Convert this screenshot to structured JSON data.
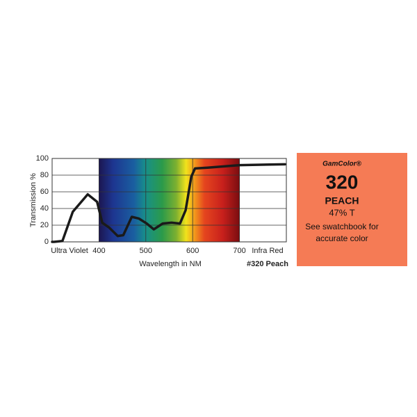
{
  "chart_data": {
    "type": "line",
    "ylabel": "Transmission %",
    "xlabel": "Wavelength in NM",
    "region_labels": [
      "Ultra Violet",
      "Infra Red"
    ],
    "caption": "#320 Peach",
    "x": [
      300,
      304,
      322,
      344,
      376,
      396,
      407,
      422,
      440,
      452,
      470,
      485,
      502,
      517,
      536,
      555,
      573,
      585,
      597,
      605,
      632,
      700,
      797
    ],
    "values": [
      0,
      0,
      1,
      36,
      57,
      48,
      23,
      17,
      7,
      8,
      30,
      28,
      22,
      15,
      22,
      23,
      22,
      38,
      78,
      88,
      89,
      92,
      93
    ],
    "color": "#1a1a1a",
    "xlim": [
      300,
      800
    ],
    "xticks": [
      400,
      500,
      600,
      700
    ],
    "ylim": [
      0,
      100
    ],
    "yticks": [
      0,
      20,
      40,
      60,
      80,
      100
    ],
    "grid": true
  },
  "swatch": {
    "color": "#f57b55",
    "brand": "GamColor®",
    "number": "320",
    "name": "PEACH",
    "transmission": "47% T",
    "note": [
      "See swatchbook for",
      "accurate color"
    ]
  }
}
